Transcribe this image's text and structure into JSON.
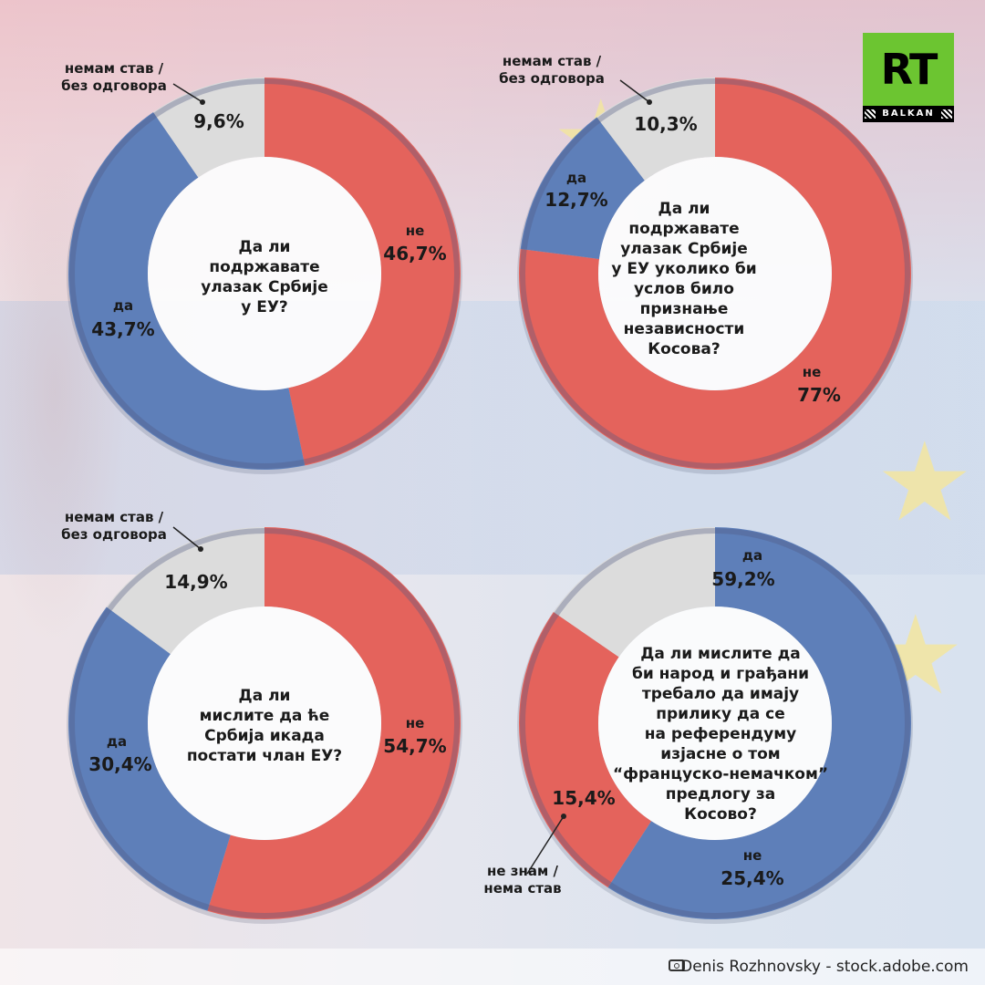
{
  "brand": {
    "logo_text": "RT",
    "logo_sub": "BALKAN"
  },
  "credit": "Denis Rozhnovsky - stock.adobe.com",
  "colors": {
    "red": "#e4635c",
    "blue": "#5e7fb9",
    "grey": "#dcdcdc",
    "ring": "#7a8fb0"
  },
  "chart_data": [
    {
      "type": "pie",
      "title": "Да ли\nподржавате\nулазак Србије\nу ЕУ?",
      "slices": [
        {
          "label": "не",
          "value": 46.7,
          "text": "46,7%",
          "color": "#e4635c"
        },
        {
          "label": "да",
          "value": 43.7,
          "text": "43,7%",
          "color": "#5e7fb9"
        },
        {
          "label": "немам став /\nбез одговора",
          "value": 9.6,
          "text": "9,6%",
          "color": "#dcdcdc"
        }
      ]
    },
    {
      "type": "pie",
      "title": "Да ли\nподржавате\nулазак Србије\nу ЕУ уколико би\nуслов било\nпризнање\nнезависности\nКосова?",
      "slices": [
        {
          "label": "не",
          "value": 77,
          "text": "77%",
          "color": "#e4635c"
        },
        {
          "label": "да",
          "value": 12.7,
          "text": "12,7%",
          "color": "#5e7fb9"
        },
        {
          "label": "немам став /\nбез одговора",
          "value": 10.3,
          "text": "10,3%",
          "color": "#dcdcdc"
        }
      ]
    },
    {
      "type": "pie",
      "title": "Да ли\nмислите да ће\nСрбија икада\nпостати члан ЕУ?",
      "slices": [
        {
          "label": "не",
          "value": 54.7,
          "text": "54,7%",
          "color": "#e4635c"
        },
        {
          "label": "да",
          "value": 30.4,
          "text": "30,4%",
          "color": "#5e7fb9"
        },
        {
          "label": "немам став /\nбез одговора",
          "value": 14.9,
          "text": "14,9%",
          "color": "#dcdcdc"
        }
      ]
    },
    {
      "type": "pie",
      "title": "Да ли мислите да\nби народ и грађани\nтребало да имају\nприлику да се\nна референдуму\nизјасне о том\n“француско-немачком”\nпредлогу за\nКосово?",
      "slices": [
        {
          "label": "да",
          "value": 59.2,
          "text": "59,2%",
          "color": "#5e7fb9"
        },
        {
          "label": "не",
          "value": 25.4,
          "text": "25,4%",
          "color": "#e4635c"
        },
        {
          "label": "не знам /\nнема став",
          "value": 15.4,
          "text": "15,4%",
          "color": "#dcdcdc"
        }
      ]
    }
  ]
}
